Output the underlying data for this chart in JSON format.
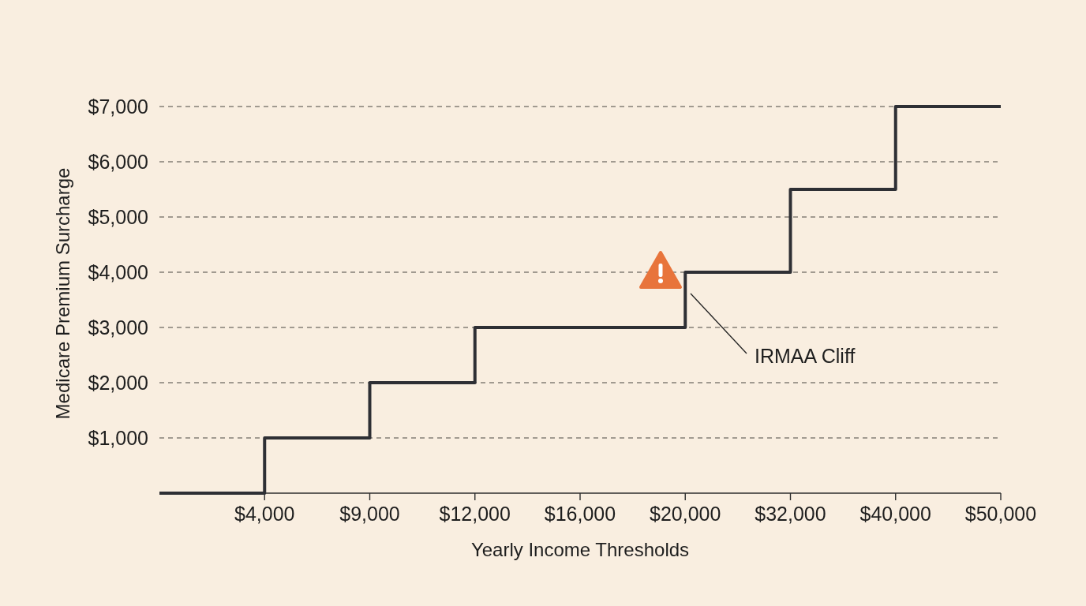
{
  "chart_data": {
    "type": "step",
    "xlabel": "Yearly Income Thresholds",
    "ylabel": "Medicare Premium Surcharge",
    "categories": [
      null,
      "$4,000",
      "$9,000",
      "$12,000",
      "$16,000",
      "$20,000",
      "$32,000",
      "$40,000",
      "$50,000"
    ],
    "series": [
      {
        "color": "#2e2f34",
        "values": [
          0,
          1000,
          2000,
          3000,
          3000,
          4000,
          5500,
          7000,
          7000
        ]
      }
    ],
    "ylim": [
      0,
      7000
    ],
    "yticks": [
      {
        "value": 1000,
        "label": "$1,000"
      },
      {
        "value": 2000,
        "label": "$2,000"
      },
      {
        "value": 3000,
        "label": "$3,000"
      },
      {
        "value": 4000,
        "label": "$4,000"
      },
      {
        "value": 5000,
        "label": "$5,000"
      },
      {
        "value": 6000,
        "label": "$6,000"
      },
      {
        "value": 7000,
        "label": "$7,000"
      }
    ],
    "grid": "y",
    "annotations": [
      "IRMAA Cliff"
    ]
  }
}
